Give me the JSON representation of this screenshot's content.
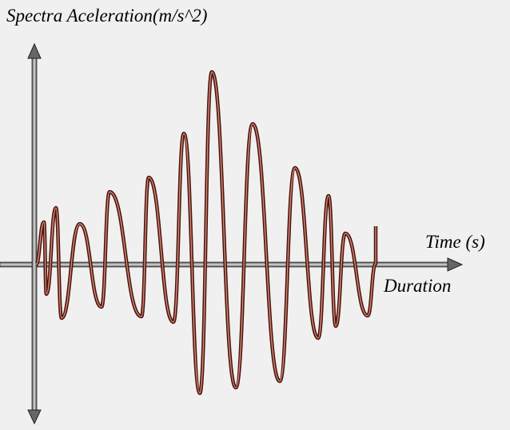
{
  "title": "Spectra Aceleration(m/s^2)",
  "x_axis_label": "Time (s)",
  "duration_label": "Duration"
}
